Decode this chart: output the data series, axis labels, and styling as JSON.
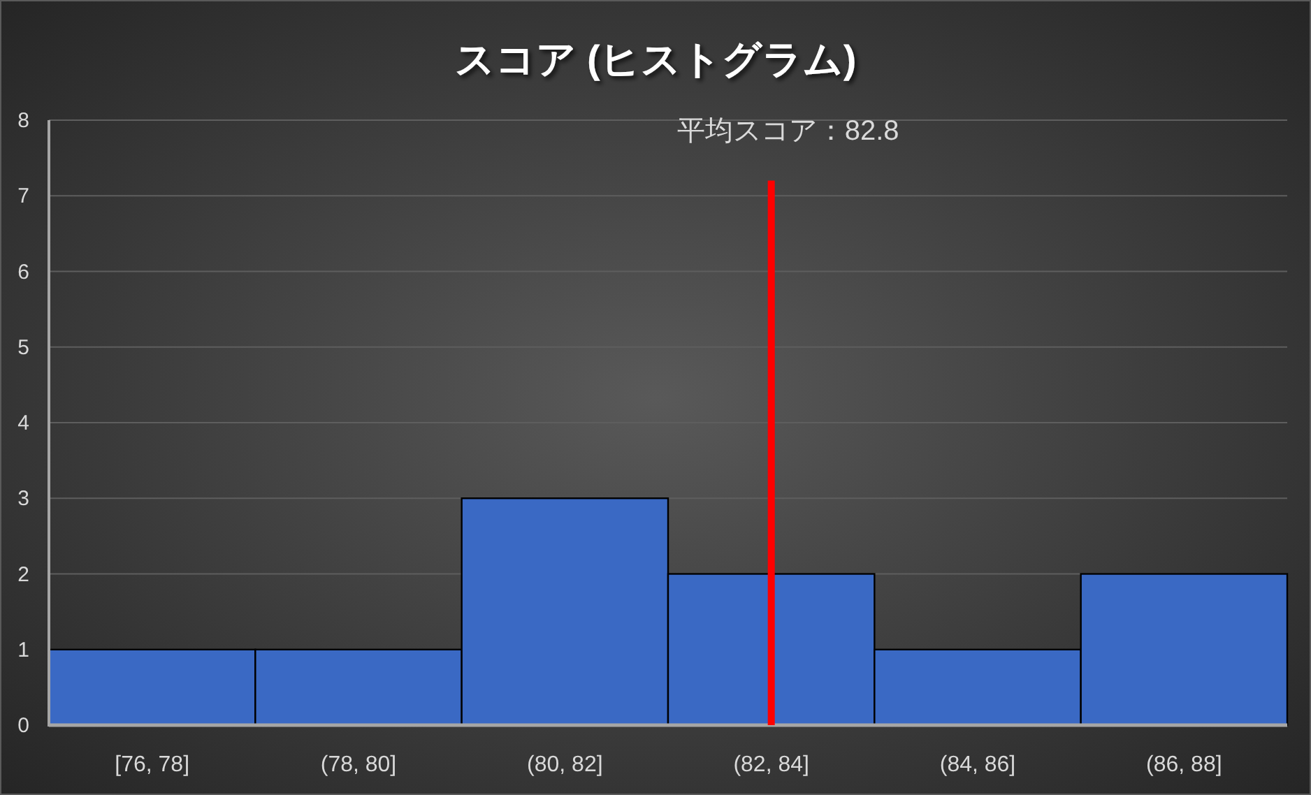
{
  "chart_data": {
    "type": "bar",
    "title": "スコア (ヒストグラム)",
    "categories": [
      "[76, 78]",
      "(78, 80]",
      "(80, 82]",
      "(82, 84]",
      "(84, 86]",
      "(86, 88]"
    ],
    "values": [
      1,
      1,
      3,
      2,
      1,
      2
    ],
    "color": "#3a69c4",
    "ylim": [
      0,
      8
    ],
    "yticks": [
      0,
      1,
      2,
      3,
      4,
      5,
      6,
      7,
      8
    ],
    "grid": "y",
    "ref_lines": [
      {
        "axis": "x",
        "value": "(82, 84]",
        "label": "平均スコア：82.8",
        "color": "#ff0000"
      }
    ]
  }
}
